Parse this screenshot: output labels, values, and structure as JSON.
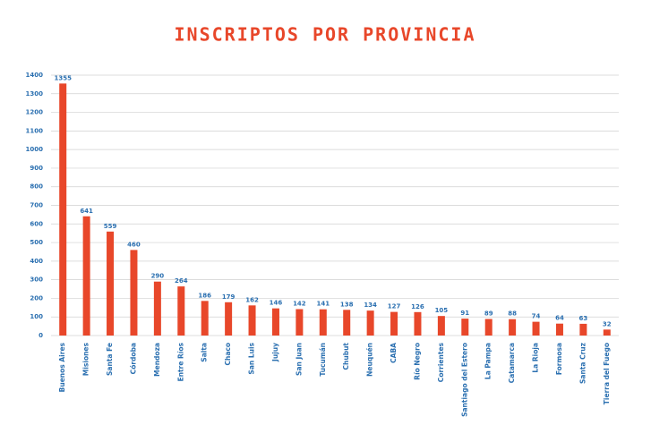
{
  "chart_data": {
    "type": "bar",
    "title": "INSCRIPTOS POR PROVINCIA",
    "categories": [
      "Buenos Aires",
      "Misiones",
      "Santa Fe",
      "Córdoba",
      "Mendoza",
      "Entre Ríos",
      "Salta",
      "Chaco",
      "San Luis",
      "Jujuy",
      "San Juan",
      "Tucumán",
      "Chubut",
      "Neuquén",
      "CABA",
      "Río Negro",
      "Corrientes",
      "Santiago del Estero",
      "La Pampa",
      "Catamarca",
      "La Rioja",
      "Formosa",
      "Santa Cruz",
      "Tierra del Fuego"
    ],
    "values": [
      1355,
      641,
      559,
      460,
      290,
      264,
      186,
      179,
      162,
      146,
      142,
      141,
      138,
      134,
      127,
      126,
      105,
      91,
      89,
      88,
      74,
      64,
      63,
      32
    ],
    "color": "#e8472a",
    "ylim": [
      0,
      1400
    ],
    "yticks": [
      0,
      100,
      200,
      300,
      400,
      500,
      600,
      700,
      800,
      900,
      1000,
      1100,
      1200,
      1300,
      1400
    ],
    "grid": true
  }
}
